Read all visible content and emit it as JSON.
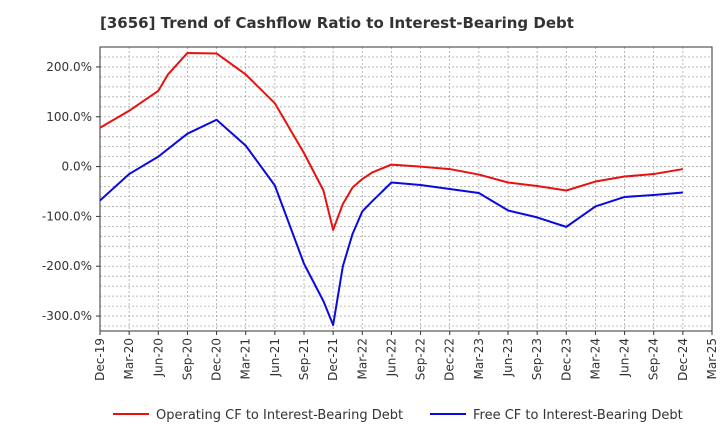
{
  "title": "[3656]  Trend of Cashflow Ratio to Interest-Bearing Debt",
  "chart_data": {
    "type": "line",
    "title": "[3656]  Trend of Cashflow Ratio to Interest-Bearing Debt",
    "xlabel": "",
    "ylabel": "",
    "ylim": [
      -330,
      240
    ],
    "yticks": [
      200,
      100,
      0,
      -100,
      -200,
      -300
    ],
    "ytick_labels": [
      "200.0%",
      "100.0%",
      "0.0%",
      "-100.0%",
      "-200.0%",
      "-300.0%"
    ],
    "xtick_labels": [
      "Dec-19",
      "Mar-20",
      "Jun-20",
      "Sep-20",
      "Dec-20",
      "Mar-21",
      "Jun-21",
      "Sep-21",
      "Dec-21",
      "Mar-22",
      "Jun-22",
      "Sep-22",
      "Dec-22",
      "Mar-23",
      "Jun-23",
      "Sep-23",
      "Dec-23",
      "Mar-24",
      "Jun-24",
      "Sep-24",
      "Dec-24",
      "Mar-25"
    ],
    "x_range": [
      "Dec-19",
      "Mar-25"
    ],
    "grid": true,
    "legend_position": "bottom",
    "series": [
      {
        "name": "Operating CF to Interest-Bearing Debt",
        "color": "#e8110f",
        "x": [
          "Dec-19",
          "Mar-20",
          "Jun-20",
          "Jul-20",
          "Sep-20",
          "Dec-20",
          "Mar-21",
          "Jun-21",
          "Sep-21",
          "Nov-21",
          "Dec-21",
          "Jan-22",
          "Feb-22",
          "Mar-22",
          "Apr-22",
          "Jun-22",
          "Sep-22",
          "Dec-22",
          "Mar-23",
          "Jun-23",
          "Sep-23",
          "Dec-23",
          "Mar-24",
          "Jun-24",
          "Sep-24",
          "Dec-24"
        ],
        "values": [
          78,
          112,
          152,
          185,
          228,
          227,
          185,
          127,
          27,
          -48,
          -127,
          -75,
          -42,
          -25,
          -12,
          4,
          0,
          -5,
          -16,
          -32,
          -39,
          -48,
          -30,
          -20,
          -15,
          -5
        ]
      },
      {
        "name": "Free CF to Interest-Bearing Debt",
        "color": "#0a0ae0",
        "x": [
          "Dec-19",
          "Mar-20",
          "Jun-20",
          "Sep-20",
          "Dec-20",
          "Mar-21",
          "Jun-21",
          "Sep-21",
          "Nov-21",
          "Dec-21",
          "Jan-22",
          "Feb-22",
          "Mar-22",
          "Apr-22",
          "Jun-22",
          "Sep-22",
          "Dec-22",
          "Mar-23",
          "Jun-23",
          "Sep-23",
          "Dec-23",
          "Mar-24",
          "Jun-24",
          "Sep-24",
          "Dec-24"
        ],
        "values": [
          -68,
          -15,
          20,
          66,
          94,
          42,
          -38,
          -195,
          -270,
          -318,
          -200,
          -135,
          -90,
          -70,
          -32,
          -37,
          -45,
          -53,
          -88,
          -102,
          -121,
          -80,
          -61,
          -57,
          -52
        ]
      }
    ]
  }
}
